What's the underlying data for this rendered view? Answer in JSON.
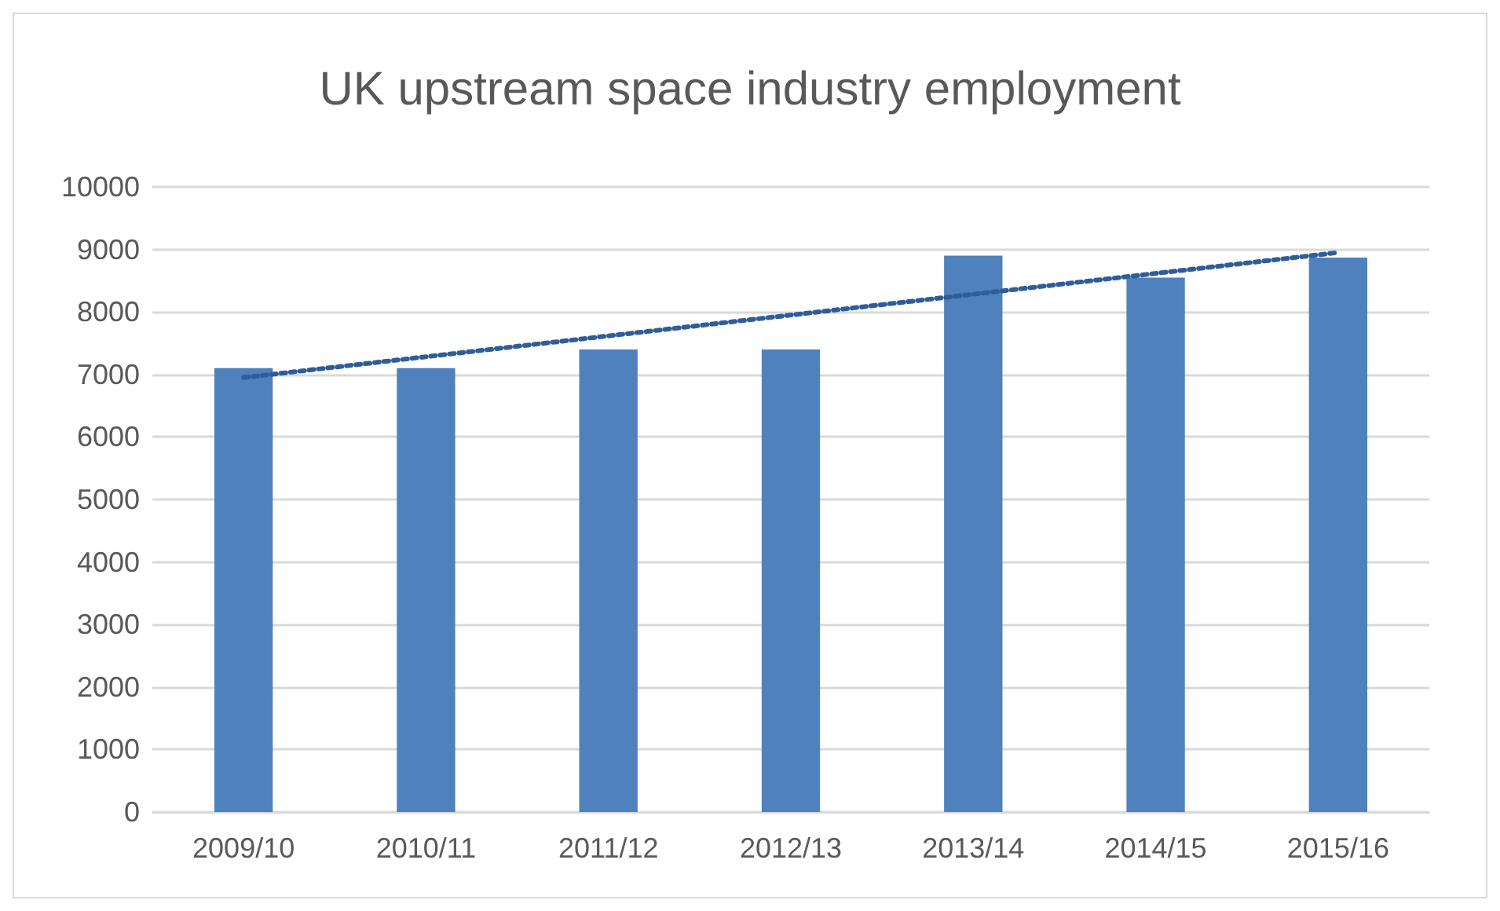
{
  "chart_data": {
    "type": "bar",
    "title": "UK upstream space industry employment",
    "categories": [
      "2009/10",
      "2010/11",
      "2011/12",
      "2012/13",
      "2013/14",
      "2014/15",
      "2015/16"
    ],
    "series": [
      {
        "color": "#4f81bd",
        "values": [
          7100,
          7100,
          7400,
          7400,
          8900,
          8550,
          8870
        ]
      },
      {
        "type": "line",
        "color": "#2f5d99",
        "x": [
          "2009/10",
          "2015/16"
        ],
        "values": [
          6950,
          8950
        ],
        "line_style": "dotted",
        "marker": "none"
      }
    ],
    "ylim": [
      0,
      10000
    ],
    "yticks": [
      0,
      1000,
      2000,
      3000,
      4000,
      5000,
      6000,
      7000,
      8000,
      9000,
      10000
    ],
    "grid": "y"
  }
}
